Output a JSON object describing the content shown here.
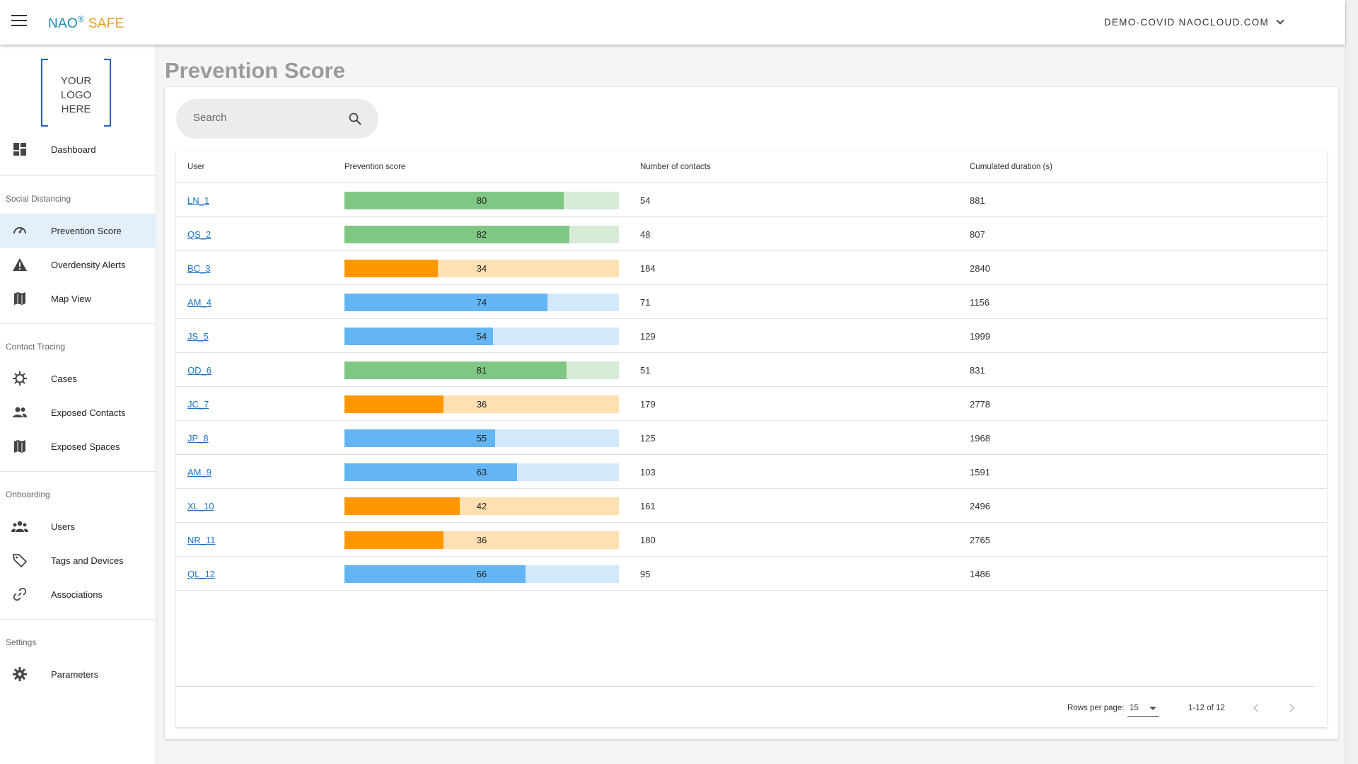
{
  "header": {
    "brand_nao": "NAO",
    "brand_reg": "®",
    "brand_safe": " SAFE",
    "account": "DEMO-COVID NAOCLOUD.COM"
  },
  "sidebar": {
    "logo": [
      "YOUR",
      "LOGO",
      "HERE"
    ],
    "dashboard": "Dashboard",
    "sections": {
      "social": "Social Distancing",
      "contact": "Contact Tracing",
      "onboarding": "Onboarding",
      "settings": "Settings"
    },
    "items": {
      "prevention": "Prevention Score",
      "overdensity": "Overdensity Alerts",
      "map": "Map View",
      "cases": "Cases",
      "exposed_contacts": "Exposed Contacts",
      "exposed_spaces": "Exposed Spaces",
      "users": "Users",
      "tags": "Tags and Devices",
      "associations": "Associations",
      "parameters": "Parameters"
    }
  },
  "page": {
    "title": "Prevention Score",
    "search_placeholder": "Search"
  },
  "table": {
    "columns": [
      "User",
      "Prevention score",
      "Number of contacts",
      "Cumulated duration (s)"
    ],
    "colors": {
      "green": [
        "#81c784",
        "#d6ecd8"
      ],
      "orange": [
        "#ff9800",
        "#ffe0b2"
      ],
      "blue": [
        "#64b5f6",
        "#d3e8fb"
      ]
    },
    "rows": [
      {
        "user": "LN_1",
        "score": 80,
        "color": "green",
        "contacts": "54",
        "duration": "881"
      },
      {
        "user": "QS_2",
        "score": 82,
        "color": "green",
        "contacts": "48",
        "duration": "807"
      },
      {
        "user": "BC_3",
        "score": 34,
        "color": "orange",
        "contacts": "184",
        "duration": "2840"
      },
      {
        "user": "AM_4",
        "score": 74,
        "color": "blue",
        "contacts": "71",
        "duration": "1156"
      },
      {
        "user": "JS_5",
        "score": 54,
        "color": "blue",
        "contacts": "129",
        "duration": "1999"
      },
      {
        "user": "OD_6",
        "score": 81,
        "color": "green",
        "contacts": "51",
        "duration": "831"
      },
      {
        "user": "JC_7",
        "score": 36,
        "color": "orange",
        "contacts": "179",
        "duration": "2778"
      },
      {
        "user": "JP_8",
        "score": 55,
        "color": "blue",
        "contacts": "125",
        "duration": "1968"
      },
      {
        "user": "AM_9",
        "score": 63,
        "color": "blue",
        "contacts": "103",
        "duration": "1591"
      },
      {
        "user": "XL_10",
        "score": 42,
        "color": "orange",
        "contacts": "161",
        "duration": "2496"
      },
      {
        "user": "NR_11",
        "score": 36,
        "color": "orange",
        "contacts": "180",
        "duration": "2765"
      },
      {
        "user": "QL_12",
        "score": 66,
        "color": "blue",
        "contacts": "95",
        "duration": "1486"
      }
    ]
  },
  "pagination": {
    "rows_per_page_label": "Rows per page:",
    "rows_per_page": "15",
    "range": "1-12 of 12"
  }
}
